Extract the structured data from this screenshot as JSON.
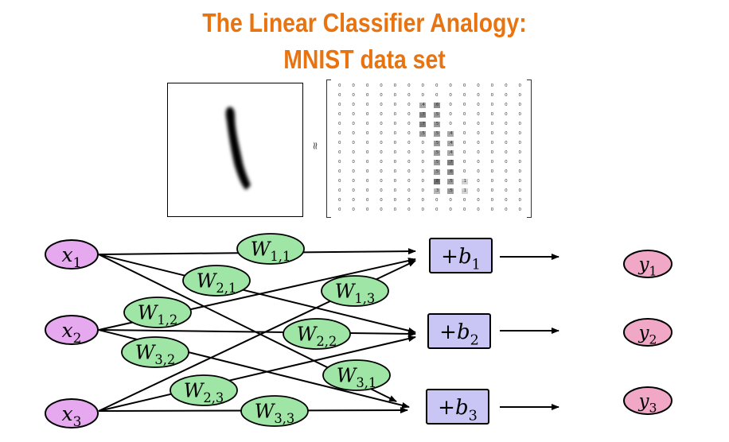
{
  "title": {
    "line1": "The Linear Classifier Analogy:",
    "line2": "MNIST data set"
  },
  "approx_symbol": "≈",
  "matrix": [
    [
      "0",
      "0",
      "0",
      "0",
      "0",
      "0",
      "0",
      "0",
      "0",
      "0",
      "0",
      "0",
      "0",
      "0"
    ],
    [
      "0",
      "0",
      "0",
      "0",
      "0",
      "0",
      "0",
      "0",
      "0",
      "0",
      "0",
      "0",
      "0",
      "0"
    ],
    [
      "0",
      "0",
      "0",
      "0",
      "0",
      "0",
      ".4",
      ".6",
      "0",
      "0",
      "0",
      "0",
      "0",
      "0"
    ],
    [
      "0",
      "0",
      "0",
      "0",
      "0",
      "0",
      ".7",
      ".5",
      "0",
      "0",
      "0",
      "0",
      "0",
      "0"
    ],
    [
      "0",
      "0",
      "0",
      "0",
      "0",
      "0",
      ".7",
      ".5",
      "0",
      "0",
      "0",
      "0",
      "0",
      "0"
    ],
    [
      "0",
      "0",
      "0",
      "0",
      "0",
      "0",
      ".5",
      ".5",
      ".4",
      "0",
      "0",
      "0",
      "0",
      "0"
    ],
    [
      "0",
      "0",
      "0",
      "0",
      "0",
      "0",
      "0",
      ".5",
      ".4",
      "0",
      "0",
      "0",
      "0",
      "0"
    ],
    [
      "0",
      "0",
      "0",
      "0",
      "0",
      "0",
      "0",
      ".5",
      ".4",
      "0",
      "0",
      "0",
      "0",
      "0"
    ],
    [
      "0",
      "0",
      "0",
      "0",
      "0",
      "0",
      "0",
      ".5",
      ".7",
      "0",
      "0",
      "0",
      "0",
      "0"
    ],
    [
      "0",
      "0",
      "0",
      "0",
      "0",
      "0",
      "0",
      ".5",
      ".6",
      "0",
      "0",
      "0",
      "0",
      "0"
    ],
    [
      "0",
      "0",
      "0",
      "0",
      "0",
      "0",
      "0",
      ".8",
      ".5",
      ".1",
      "0",
      "0",
      "0",
      "0"
    ],
    [
      "0",
      "0",
      "0",
      "0",
      "0",
      "0",
      "0",
      ".3",
      ".5",
      ".1",
      "0",
      "0",
      "0",
      "0"
    ],
    [
      "0",
      "0",
      "0",
      "0",
      "0",
      "0",
      "0",
      "0",
      "0",
      "0",
      "0",
      "0",
      "0",
      "0"
    ],
    [
      "0",
      "0",
      "0",
      "0",
      "0",
      "0",
      "0",
      "0",
      "0",
      "0",
      "0",
      "0",
      "0",
      "0"
    ]
  ],
  "inputs": [
    {
      "base": "x",
      "sub": "1"
    },
    {
      "base": "x",
      "sub": "2"
    },
    {
      "base": "x",
      "sub": "3"
    }
  ],
  "weights": [
    {
      "base": "W",
      "sub": "1,1"
    },
    {
      "base": "W",
      "sub": "2,1"
    },
    {
      "base": "W",
      "sub": "1,2"
    },
    {
      "base": "W",
      "sub": "3,2"
    },
    {
      "base": "W",
      "sub": "1,3"
    },
    {
      "base": "W",
      "sub": "2,2"
    },
    {
      "base": "W",
      "sub": "3,1"
    },
    {
      "base": "W",
      "sub": "2,3"
    },
    {
      "base": "W",
      "sub": "3,3"
    }
  ],
  "biases": [
    {
      "prefix": "+b",
      "sub": "1"
    },
    {
      "prefix": "+b",
      "sub": "2"
    },
    {
      "prefix": "+b",
      "sub": "3"
    }
  ],
  "outputs": [
    {
      "base": "y",
      "sub": "1"
    },
    {
      "base": "y",
      "sub": "2"
    },
    {
      "base": "y",
      "sub": "3"
    }
  ],
  "colors": {
    "title": "#e8730f",
    "input_fill": "#e6a8ef",
    "weight_fill": "#9fe6a6",
    "bias_fill": "#c9c6f5",
    "output_fill": "#f0a8c6"
  }
}
